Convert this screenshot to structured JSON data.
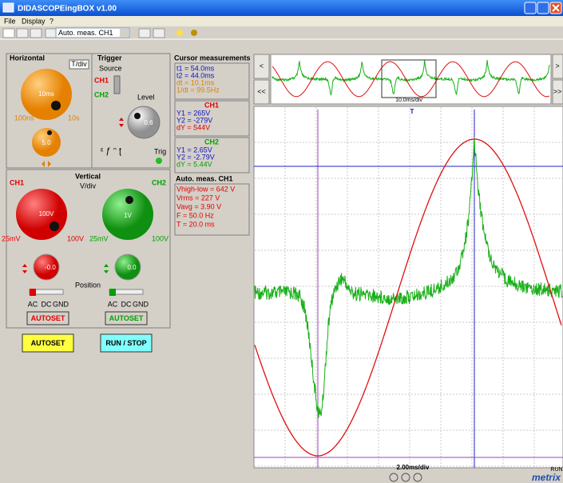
{
  "window": {
    "title": "DIDASCOPEingBOX v1.00"
  },
  "menu": [
    "File",
    "Display",
    "?"
  ],
  "toolbar": {
    "measure_select": "Auto. meas. CH1"
  },
  "horizontal": {
    "title": "Horizontal",
    "tdiv": "T/div",
    "knob": "10ms",
    "min": "100ns",
    "max": "10s",
    "fine": "5.0"
  },
  "trigger": {
    "title": "Trigger",
    "source": "Source",
    "ch1": "CH1",
    "ch2": "CH2",
    "level": "Level",
    "level_knob": "0.6",
    "trig": "Trig"
  },
  "vertical": {
    "title": "Vertical",
    "vdiv": "V/div",
    "ch1": "CH1",
    "ch2": "CH2",
    "ch1_knob": "100V",
    "ch2_knob": "1V",
    "ch1_min": "25mV",
    "ch1_max": "100V",
    "ch2_min": "25mV",
    "ch2_max": "100V",
    "ch1_pos": "-0.0",
    "ch2_pos": "0.0",
    "position": "Position",
    "coupling": [
      "AC",
      "DC",
      "GND"
    ],
    "autoset_ch1": "AUTOSET",
    "autoset_ch2": "AUTOSET"
  },
  "buttons": {
    "autoset": "AUTOSET",
    "run_stop": "RUN / STOP"
  },
  "cursor": {
    "title": "Cursor measurements",
    "time": [
      "t1 = 54.0ms",
      "t2 = 44.0ms",
      "dt = 10.1ms",
      "1/dt = 99.5Hz"
    ],
    "ch1": {
      "title": "CH1",
      "lines": [
        "Y1 = 265V",
        "Y2 = -279V",
        "dY = 544V"
      ]
    },
    "ch2": {
      "title": "CH2",
      "lines": [
        "Y1 = 2.65V",
        "Y2 = -2.79V",
        "dY = 5.44V"
      ]
    }
  },
  "auto_meas": {
    "title": "Auto. meas. CH1",
    "lines": [
      "Vhigh-low = 642 V",
      "Vrms = 227 V",
      "Vavg = 3.90 V",
      "F = 50.0 Hz",
      "T = 20.0 ms"
    ]
  },
  "scope": {
    "overview_scale": "10.0ms/div",
    "scale": "2.00ms/div",
    "status": "RUN",
    "brand": "metrix"
  }
}
